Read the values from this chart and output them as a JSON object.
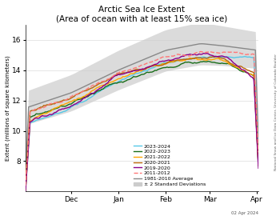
{
  "title": "Arctic Sea Ice Extent\n(Area of ocean with at least 15% sea ice)",
  "ylabel": "Extent (millions of square kilometers)",
  "watermark": "National Snow and Ice Data Center, University of Colorado Boulder",
  "date_label": "02 Apr 2024",
  "ylim": [
    6,
    17
  ],
  "yticks": [
    8,
    10,
    12,
    14,
    16
  ],
  "background_color": "#ffffff",
  "series_order": [
    "2023-2024",
    "2022-2023",
    "2021-2022",
    "2020-2021",
    "2019-2020",
    "2011-2012"
  ],
  "series": {
    "2023-2024": {
      "color": "#56c8e8",
      "lw": 1.0,
      "ls": "-"
    },
    "2022-2023": {
      "color": "#1a6e1a",
      "lw": 1.0,
      "ls": "-"
    },
    "2021-2022": {
      "color": "#ffa500",
      "lw": 1.0,
      "ls": "-"
    },
    "2020-2021": {
      "color": "#b8660a",
      "lw": 1.0,
      "ls": "-"
    },
    "2019-2020": {
      "color": "#8b008b",
      "lw": 1.0,
      "ls": "-"
    },
    "2011-2012": {
      "color": "#ff7777",
      "lw": 1.0,
      "ls": "--"
    }
  },
  "avg_color": "#888888",
  "shade_color": "#cccccc",
  "n_days": 154,
  "month_ticks": [
    30,
    61,
    92,
    121,
    152
  ],
  "month_labels": [
    "Dec",
    "Jan",
    "Feb",
    "Mar",
    "Apr"
  ]
}
